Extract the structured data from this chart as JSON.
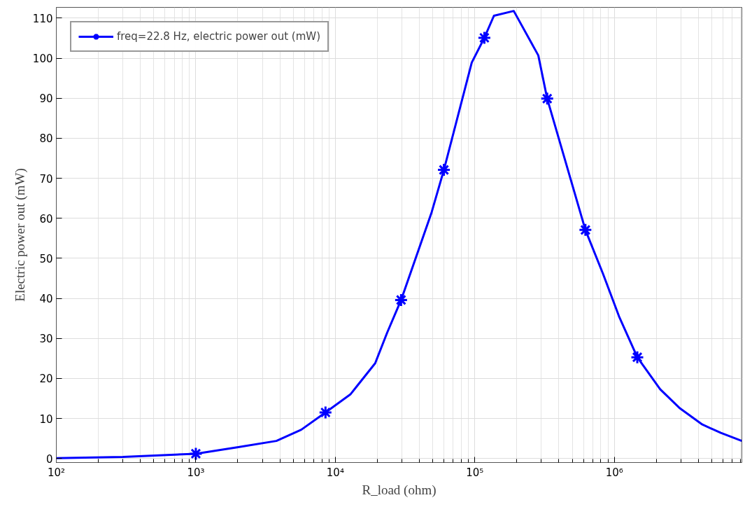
{
  "chart_data": {
    "type": "line",
    "xlabel": "R_load (ohm)",
    "ylabel": "Electric power out (mW)",
    "log": "x",
    "grid": true,
    "legend": "top left",
    "line_style": "solid",
    "xlim": [
      100,
      8200000
    ],
    "ylim": [
      -1,
      112.7
    ],
    "xticks": [
      {
        "value": 100,
        "label": "10²"
      },
      {
        "value": 1000,
        "label": "10³"
      },
      {
        "value": 10000,
        "label": "10⁴"
      },
      {
        "value": 100000,
        "label": "10⁵"
      },
      {
        "value": 1000000,
        "label": "10⁶"
      }
    ],
    "yticks": [
      0,
      10,
      20,
      30,
      40,
      50,
      60,
      70,
      80,
      90,
      100,
      110
    ],
    "series": [
      {
        "name": "freq=22.8 Hz, electric power out (mW)",
        "color": "#0000ff",
        "marker": "none",
        "x": [
          100,
          300,
          1000,
          1980,
          3780,
          5700,
          8500,
          12800,
          19300,
          23500,
          29600,
          49000,
          60000,
          95000,
          117000,
          137000,
          190000,
          285000,
          330000,
          620000,
          830000,
          1080000,
          1460000,
          2130000,
          2960000,
          4270000,
          5800000,
          8200000
        ],
        "values": [
          0.1,
          0.4,
          1.2,
          2.8,
          4.4,
          7.2,
          11.5,
          16,
          23.8,
          31.4,
          39.6,
          61.5,
          72.1,
          98.9,
          105.1,
          110.6,
          111.8,
          100.7,
          89.9,
          57.1,
          46.1,
          35.5,
          25.3,
          17.3,
          12.5,
          8.5,
          6.4,
          4.4
        ]
      },
      {
        "color": "#0000ff",
        "type": "scatter",
        "marker": "cross",
        "x": [
          1000,
          8500,
          29600,
          60000,
          117000,
          330000,
          620000,
          1460000
        ],
        "values": [
          1.2,
          11.5,
          39.6,
          72.1,
          105.1,
          89.9,
          57.1,
          25.3
        ]
      }
    ]
  }
}
